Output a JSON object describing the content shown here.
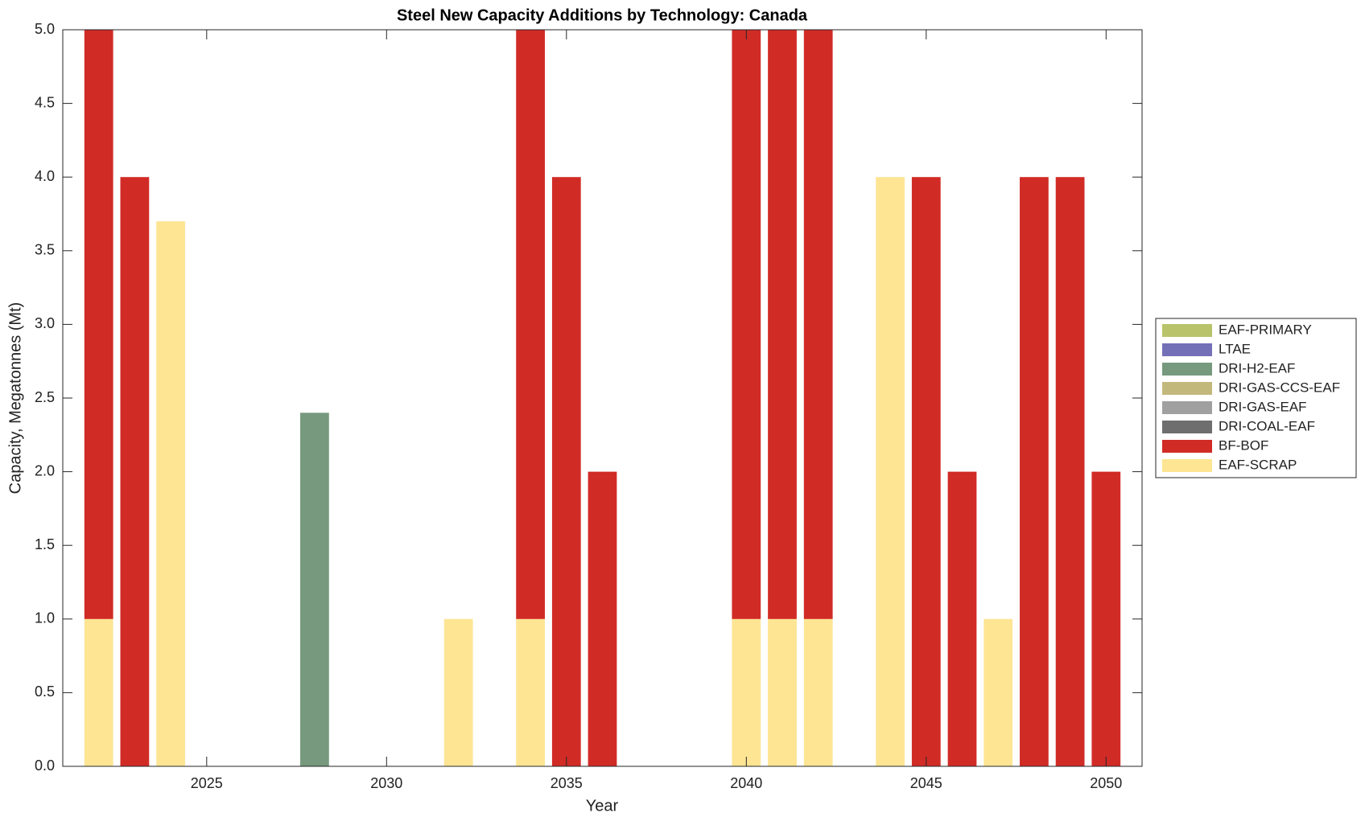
{
  "chart_data": {
    "type": "stacked_bar",
    "title": "Steel New Capacity Additions by Technology: Canada",
    "xlabel": "Year",
    "ylabel": "Capacity, Megatonnes (Mt)",
    "x": [
      2022,
      2023,
      2024,
      2028,
      2032,
      2034,
      2035,
      2036,
      2040,
      2041,
      2042,
      2044,
      2045,
      2046,
      2047,
      2048,
      2049,
      2050
    ],
    "series": [
      {
        "name": "EAF-PRIMARY",
        "color": "#b9c46a",
        "values": [
          0,
          0,
          0,
          0,
          0,
          0,
          0,
          0,
          0,
          0,
          0,
          0,
          0,
          0,
          0,
          0,
          0,
          0
        ]
      },
      {
        "name": "LTAE",
        "color": "#7470b8",
        "values": [
          0,
          0,
          0,
          0,
          0,
          0,
          0,
          0,
          0,
          0,
          0,
          0,
          0,
          0,
          0,
          0,
          0,
          0
        ]
      },
      {
        "name": "DRI-H2-EAF",
        "color": "#77997e",
        "values": [
          0,
          0,
          0,
          2.4,
          0,
          0,
          0,
          0,
          0,
          0,
          0,
          0,
          0,
          0,
          0,
          0,
          0,
          0
        ]
      },
      {
        "name": "DRI-GAS-CCS-EAF",
        "color": "#c3b87c",
        "values": [
          0,
          0,
          0,
          0,
          0,
          0,
          0,
          0,
          0,
          0,
          0,
          0,
          0,
          0,
          0,
          0,
          0,
          0
        ]
      },
      {
        "name": "DRI-GAS-EAF",
        "color": "#a0a0a0",
        "values": [
          0,
          0,
          0,
          0,
          0,
          0,
          0,
          0,
          0,
          0,
          0,
          0,
          0,
          0,
          0,
          0,
          0,
          0
        ]
      },
      {
        "name": "DRI-COAL-EAF",
        "color": "#6e6e6e",
        "values": [
          0,
          0,
          0,
          0,
          0,
          0,
          0,
          0,
          0,
          0,
          0,
          0,
          0,
          0,
          0,
          0,
          0,
          0
        ]
      },
      {
        "name": "BF-BOF",
        "color": "#d12b26",
        "values": [
          4,
          4,
          0,
          0,
          0,
          4,
          4,
          2,
          4,
          4,
          4,
          0,
          4,
          2,
          0,
          4,
          4,
          2
        ]
      },
      {
        "name": "EAF-SCRAP",
        "color": "#fde594",
        "values": [
          1,
          0,
          3.7,
          0,
          1,
          1,
          0,
          0,
          1,
          1,
          1,
          4,
          0,
          0,
          1,
          0,
          0,
          0
        ]
      }
    ],
    "xlim": [
      2021,
      2051
    ],
    "xticks": [
      2025,
      2030,
      2035,
      2040,
      2045,
      2050
    ],
    "ylim": [
      0,
      5
    ],
    "yticks": [
      {
        "value": 0,
        "label": "0.0"
      },
      {
        "value": 0.5,
        "label": "0.5"
      },
      {
        "value": 1,
        "label": "1.0"
      },
      {
        "value": 1.5,
        "label": "1.5"
      },
      {
        "value": 2,
        "label": "2.0"
      },
      {
        "value": 2.5,
        "label": "2.5"
      },
      {
        "value": 3,
        "label": "3.0"
      },
      {
        "value": 3.5,
        "label": "3.5"
      },
      {
        "value": 4,
        "label": "4.0"
      },
      {
        "value": 4.5,
        "label": "4.5"
      },
      {
        "value": 5,
        "label": "5.0"
      }
    ],
    "legend": "right"
  }
}
